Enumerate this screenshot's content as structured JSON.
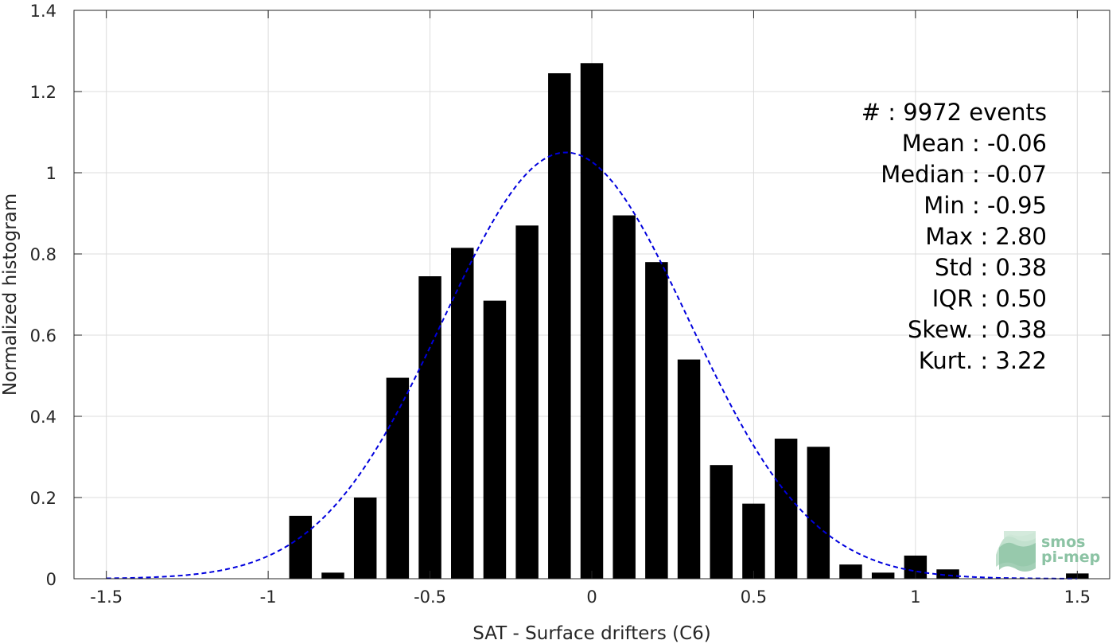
{
  "chart_data": {
    "type": "bar",
    "xlabel": "SAT - Surface drifters (C6)",
    "ylabel": "Normalized histogram",
    "xlim": [
      -1.6,
      1.6
    ],
    "ylim": [
      0,
      1.4
    ],
    "xticks": [
      -1.5,
      -1,
      -0.5,
      0,
      0.5,
      1,
      1.5
    ],
    "xtick_labels": [
      "-1.5",
      "-1",
      "-0.5",
      "0",
      "0.5",
      "1",
      "1.5"
    ],
    "yticks": [
      0,
      0.2,
      0.4,
      0.6,
      0.8,
      1,
      1.2,
      1.4
    ],
    "ytick_labels": [
      "0",
      "0.2",
      "0.4",
      "0.6",
      "0.8",
      "1",
      "1.2",
      "1.4"
    ],
    "grid": true,
    "bar_color": "#000000",
    "bar_width": 0.07,
    "bars": {
      "x": [
        -0.9,
        -0.8,
        -0.7,
        -0.6,
        -0.5,
        -0.4,
        -0.3,
        -0.2,
        -0.1,
        0.0,
        0.1,
        0.2,
        0.3,
        0.4,
        0.5,
        0.6,
        0.7,
        0.8,
        0.9,
        1.0,
        1.1,
        1.5
      ],
      "values": [
        0.155,
        0.015,
        0.2,
        0.495,
        0.745,
        0.815,
        0.685,
        0.87,
        1.245,
        1.27,
        0.895,
        0.78,
        0.54,
        0.28,
        0.185,
        0.345,
        0.325,
        0.035,
        0.015,
        0.057,
        0.023,
        0.013
      ]
    },
    "fit_curve": {
      "style": "dashed",
      "color": "#0000dd",
      "mean": -0.08,
      "std": 0.38,
      "peak": 1.05,
      "x_range": [
        -1.5,
        1.5
      ]
    },
    "stats_lines": [
      "#  : 9972 events",
      "Mean : -0.06",
      "Median : -0.07",
      "Min : -0.95",
      "Max : 2.80",
      "Std : 0.38",
      "IQR : 0.50",
      "Skew. : 0.38",
      "Kurt. : 3.22"
    ],
    "logo": {
      "line1": "smos",
      "line2": "pi-mep",
      "color": "#8cc3a4"
    }
  }
}
